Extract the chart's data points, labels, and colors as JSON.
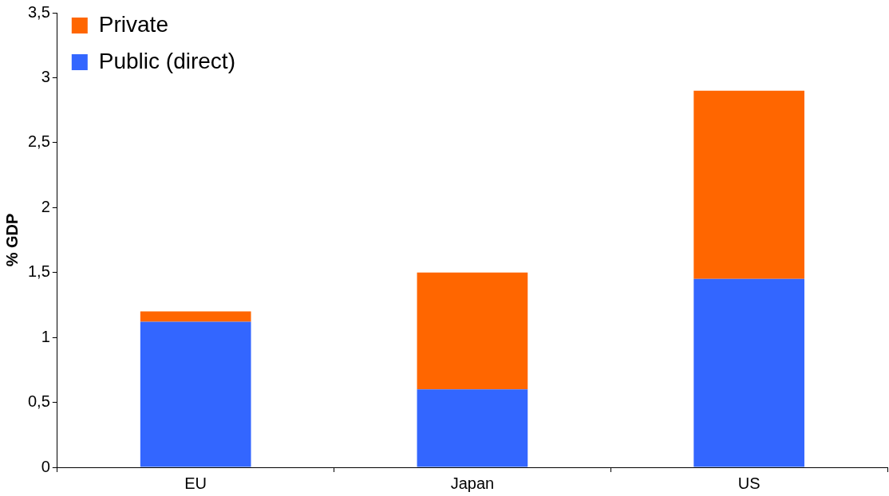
{
  "chart_data": {
    "type": "bar",
    "ylabel": "% GDP",
    "categories": [
      "EU",
      "Japan",
      "US"
    ],
    "stacked": true,
    "series": [
      {
        "name": "Public (direct)",
        "color": "#3366ff",
        "values": [
          1.12,
          0.6,
          1.45
        ]
      },
      {
        "name": "Private",
        "color": "#ff6600",
        "values": [
          0.08,
          0.9,
          1.45
        ]
      }
    ],
    "ylim": [
      0,
      3.5
    ],
    "yticks": [
      0,
      {
        "value": 0.5,
        "label": "0,5"
      },
      1,
      {
        "value": 1.5,
        "label": "1,5"
      },
      2,
      {
        "value": 2.5,
        "label": "2,5"
      },
      3,
      {
        "value": 3.5,
        "label": "3,5"
      }
    ],
    "grid": false,
    "legend": "top left"
  }
}
